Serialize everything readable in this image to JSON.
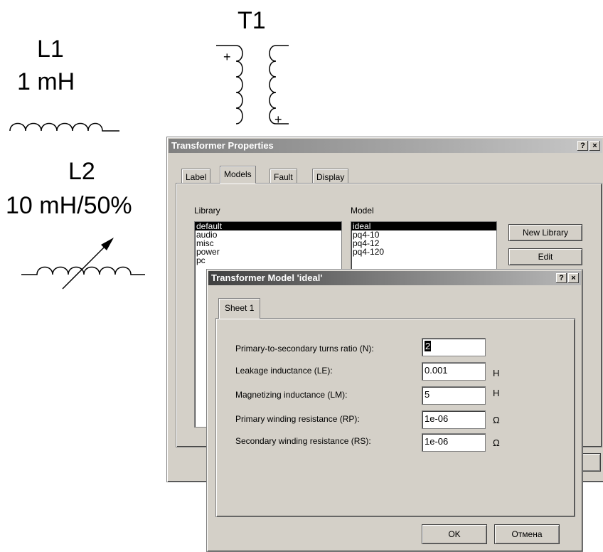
{
  "schematic": {
    "l1_name": "L1",
    "l1_value": "1 mH",
    "l2_name": "L2",
    "l2_value": "10 mH/50%",
    "t1_name": "T1",
    "polarity_mark": "+"
  },
  "props_dialog": {
    "title": "Transformer Properties",
    "help": "?",
    "close": "×",
    "tabs": [
      "Label",
      "Models",
      "Fault",
      "Display"
    ],
    "selected_tab": "Models",
    "library_label": "Library",
    "model_label": "Model",
    "libraries": [
      "default",
      "audio",
      "misc",
      "power",
      "pc"
    ],
    "models": [
      "ideal",
      "pq4-10",
      "pq4-12",
      "pq4-120"
    ],
    "new_library_button": "New Library",
    "edit_button": "Edit"
  },
  "model_dialog": {
    "title": "Transformer Model 'ideal'",
    "help": "?",
    "close": "×",
    "tab": "Sheet 1",
    "params": [
      {
        "label": "Primary-to-secondary turns ratio (N):",
        "value": "2",
        "unit": ""
      },
      {
        "label": "Leakage inductance (LE):",
        "value": "0.001",
        "unit": "H"
      },
      {
        "label": "Magnetizing inductance (LM):",
        "value": "5",
        "unit": "H"
      },
      {
        "label": "Primary winding resistance (RP):",
        "value": "1e-06",
        "unit": "Ω"
      },
      {
        "label": "Secondary winding resistance (RS):",
        "value": "1e-06",
        "unit": "Ω"
      }
    ],
    "ok_button": "OK",
    "cancel_button": "Отмена"
  }
}
